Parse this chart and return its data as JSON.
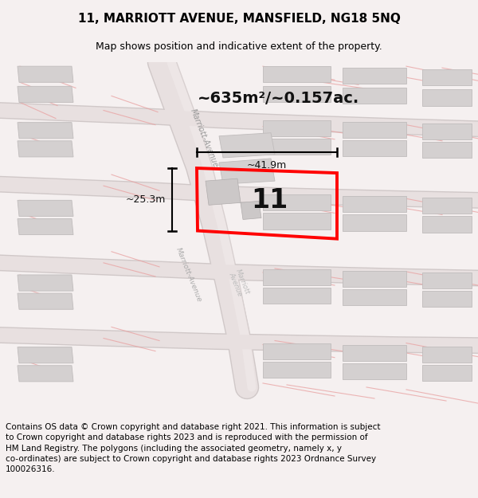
{
  "title": "11, MARRIOTT AVENUE, MANSFIELD, NG18 5NQ",
  "subtitle": "Map shows position and indicative extent of the property.",
  "footer": "Contains OS data © Crown copyright and database right 2021. This information is subject\nto Crown copyright and database rights 2023 and is reproduced with the permission of\nHM Land Registry. The polygons (including the associated geometry, namely x, y\nco-ordinates) are subject to Crown copyright and database rights 2023 Ordnance Survey\n100026316.",
  "area_label": "~635m²/~0.157ac.",
  "number_label": "11",
  "width_label": "~41.9m",
  "height_label": "~25.3m",
  "bg_color": "#f5f0f0",
  "map_bg": "#ffffff",
  "building_color": "#d4d0d0",
  "building_edge": "#c0bcbc",
  "highlight_color": "#ff0000",
  "road_color": "#e8e0e0",
  "road_edge": "#d0c8c8",
  "light_red": "#e8a0a0",
  "label_color": "#111111",
  "road_label_color": "#999999",
  "title_fontsize": 11,
  "subtitle_fontsize": 9,
  "footer_fontsize": 7.5,
  "area_fontsize": 14,
  "number_fontsize": 24,
  "dim_fontsize": 9
}
